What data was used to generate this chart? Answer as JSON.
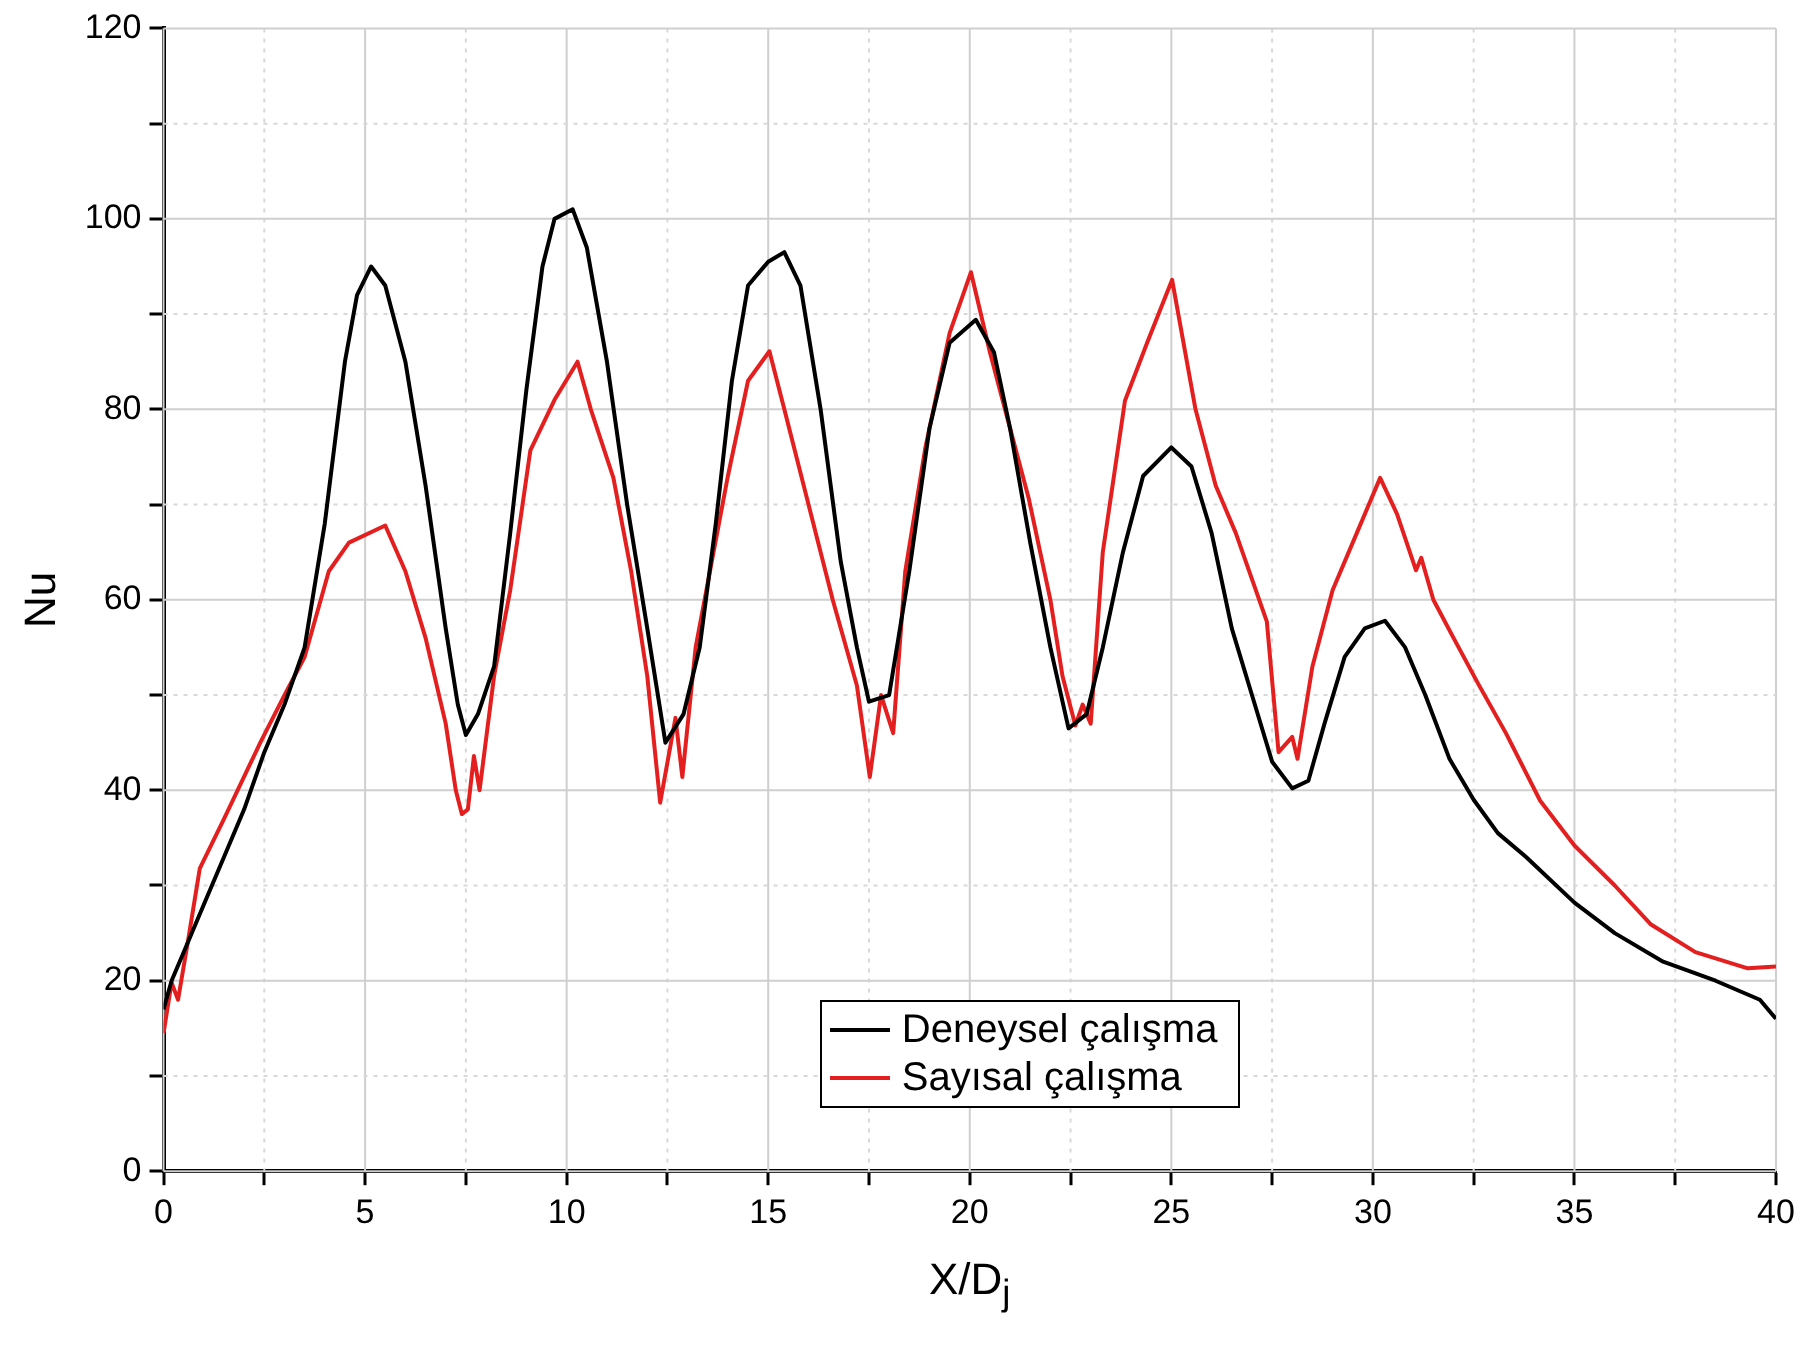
{
  "chart_data": {
    "type": "line",
    "xlabel": "X/D$_{j}$",
    "ylabel": "Nu",
    "xlim": [
      0,
      40
    ],
    "ylim": [
      0,
      120
    ],
    "xticks": [
      0,
      {
        "value": 2.5,
        "label": null
      },
      5,
      {
        "value": 7.5,
        "label": null
      },
      10,
      {
        "value": 12.5,
        "label": null
      },
      15,
      {
        "value": 17.5,
        "label": null
      },
      20,
      {
        "value": 22.5,
        "label": null
      },
      25,
      {
        "value": 27.5,
        "label": null
      },
      30,
      {
        "value": 32.5,
        "label": null
      },
      35,
      {
        "value": 37.5,
        "label": null
      },
      40
    ],
    "yticks": [
      0,
      {
        "value": 10,
        "label": null
      },
      20,
      {
        "value": 30,
        "label": null
      },
      40,
      {
        "value": 50,
        "label": null
      },
      60,
      {
        "value": 70,
        "label": null
      },
      80,
      {
        "value": 90,
        "label": null
      },
      100,
      {
        "value": 110,
        "label": null
      },
      120
    ],
    "grid": true,
    "legend": "bottom",
    "marker": "none",
    "line_style": "solid",
    "series": [
      {
        "name": "Deneysel çalışma",
        "color": "#000000",
        "x": [
          0,
          0.2,
          0.5,
          1,
          1.5,
          2,
          2.5,
          3,
          3.5,
          4,
          4.5,
          4.8,
          5.15,
          5.5,
          6,
          6.5,
          7,
          7.3,
          7.5,
          7.8,
          8.2,
          8.6,
          9,
          9.4,
          9.7,
          10.15,
          10.5,
          11,
          11.5,
          12,
          12.45,
          12.9,
          13.3,
          13.7,
          14.1,
          14.5,
          15,
          15.4,
          15.8,
          16.3,
          16.8,
          17.2,
          17.5,
          18,
          18.5,
          19,
          19.5,
          20.15,
          20.6,
          21,
          21.5,
          22,
          22.45,
          22.9,
          23.3,
          23.8,
          24.3,
          25,
          25.5,
          26,
          26.5,
          27,
          27.5,
          28,
          28.4,
          28.8,
          29.3,
          29.8,
          30.3,
          30.8,
          31.3,
          31.9,
          32.5,
          33.1,
          33.8,
          35,
          36,
          37.2,
          38.5,
          39.6,
          40
        ],
        "values": [
          17,
          20,
          23,
          28,
          33,
          38,
          44,
          49,
          55,
          68,
          85,
          92,
          95,
          93,
          85,
          72,
          57,
          49,
          45.8,
          48,
          53,
          67,
          82,
          95,
          100,
          101,
          97,
          85,
          70,
          57,
          45,
          48,
          55,
          68,
          83,
          93,
          95.5,
          96.5,
          93,
          80,
          64,
          55,
          49.3,
          50,
          63,
          78,
          87,
          89.4,
          86,
          78,
          66,
          55,
          46.5,
          48,
          55,
          65,
          73,
          76,
          74,
          67,
          57,
          50,
          43,
          40.2,
          41,
          47,
          54,
          57,
          57.8,
          55,
          50,
          43.3,
          39,
          35.5,
          33,
          28.2,
          25,
          22,
          20,
          18,
          16
        ]
      },
      {
        "name": "Sayısal çalışma",
        "color": "#e41f1f",
        "x": [
          0,
          0.2,
          0.36,
          0.6,
          0.9,
          1.5,
          2.4,
          3,
          3.5,
          4.1,
          4.6,
          5.5,
          6,
          6.5,
          7,
          7.25,
          7.4,
          7.55,
          7.7,
          7.84,
          8.2,
          8.6,
          9.1,
          9.7,
          10.27,
          10.6,
          11.16,
          11.6,
          12,
          12.32,
          12.7,
          12.87,
          13.2,
          13.6,
          14,
          14.5,
          15.03,
          15.4,
          16,
          16.6,
          17.2,
          17.52,
          17.8,
          18.1,
          18.4,
          18.9,
          19.5,
          20.03,
          20.5,
          21,
          21.46,
          22,
          22.3,
          22.62,
          22.8,
          23,
          23.3,
          23.85,
          24.4,
          25.02,
          25.6,
          26.1,
          26.6,
          27.37,
          27.66,
          28,
          28.13,
          28.5,
          29,
          29.6,
          30.18,
          30.6,
          31.07,
          31.2,
          31.5,
          32,
          32.61,
          33.3,
          34.15,
          35,
          36,
          36.9,
          38,
          39.3,
          40
        ],
        "values": [
          14.5,
          19.8,
          18,
          24,
          31.8,
          37,
          45,
          50,
          54,
          63,
          66,
          67.8,
          63,
          56,
          47,
          40,
          37.5,
          38,
          43.6,
          40,
          52,
          61,
          75.7,
          81,
          85,
          80,
          72.8,
          63,
          52,
          38.7,
          47.6,
          41.4,
          55,
          64,
          73,
          83,
          86.1,
          80,
          70,
          60,
          51,
          41.4,
          50,
          46,
          63,
          76,
          88,
          94.4,
          86,
          78,
          70.7,
          60,
          52,
          46.8,
          49,
          47,
          65,
          80.9,
          87,
          93.6,
          80,
          72,
          67,
          57.7,
          44,
          45.6,
          43.3,
          53,
          61,
          67,
          72.8,
          69,
          63.1,
          64.4,
          60,
          56,
          51.2,
          46,
          38.9,
          34.2,
          30,
          25.9,
          23,
          21.3,
          21.5
        ]
      }
    ]
  }
}
